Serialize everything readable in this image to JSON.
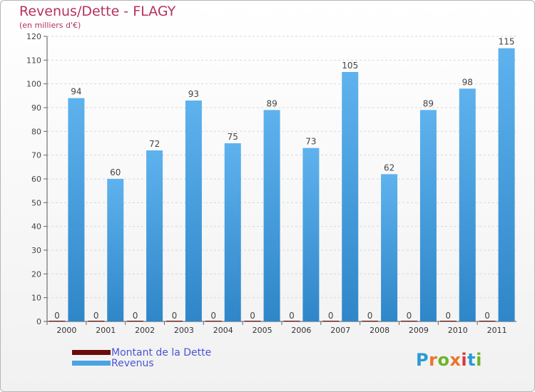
{
  "title": "Revenus/Dette - FLAGY",
  "subtitle": "(en milliers d'€)",
  "chart_data": {
    "type": "bar",
    "categories": [
      "2000",
      "2001",
      "2002",
      "2003",
      "2004",
      "2005",
      "2006",
      "2007",
      "2008",
      "2009",
      "2010",
      "2011"
    ],
    "series": [
      {
        "name": "Montant de la Dette",
        "color": "#6b0b0b",
        "values": [
          0,
          0,
          0,
          0,
          0,
          0,
          0,
          0,
          0,
          0,
          0,
          0
        ]
      },
      {
        "name": "Revenus",
        "color": "#4aa3e4",
        "values": [
          94,
          60,
          72,
          93,
          75,
          89,
          73,
          105,
          62,
          89,
          98,
          115
        ]
      }
    ],
    "yticks": [
      0,
      10,
      20,
      30,
      40,
      50,
      60,
      70,
      80,
      90,
      100,
      110,
      120
    ],
    "ylim": [
      0,
      120
    ],
    "grid": true,
    "legend": "bottom-left"
  },
  "legend": [
    {
      "label": "Montant de la Dette",
      "color": "#6b0b0b"
    },
    {
      "label": "Revenus",
      "color": "#4aa3e4"
    }
  ],
  "logo": {
    "text": "Proxiti",
    "letters": [
      "P",
      "r",
      "o",
      "x",
      "i",
      "t",
      "i"
    ],
    "colors": [
      "#2a9ad6",
      "#e8762c",
      "#6ab52c",
      "#e8762c",
      "#d63c3c",
      "#2a9ad6",
      "#6ab52c"
    ]
  }
}
